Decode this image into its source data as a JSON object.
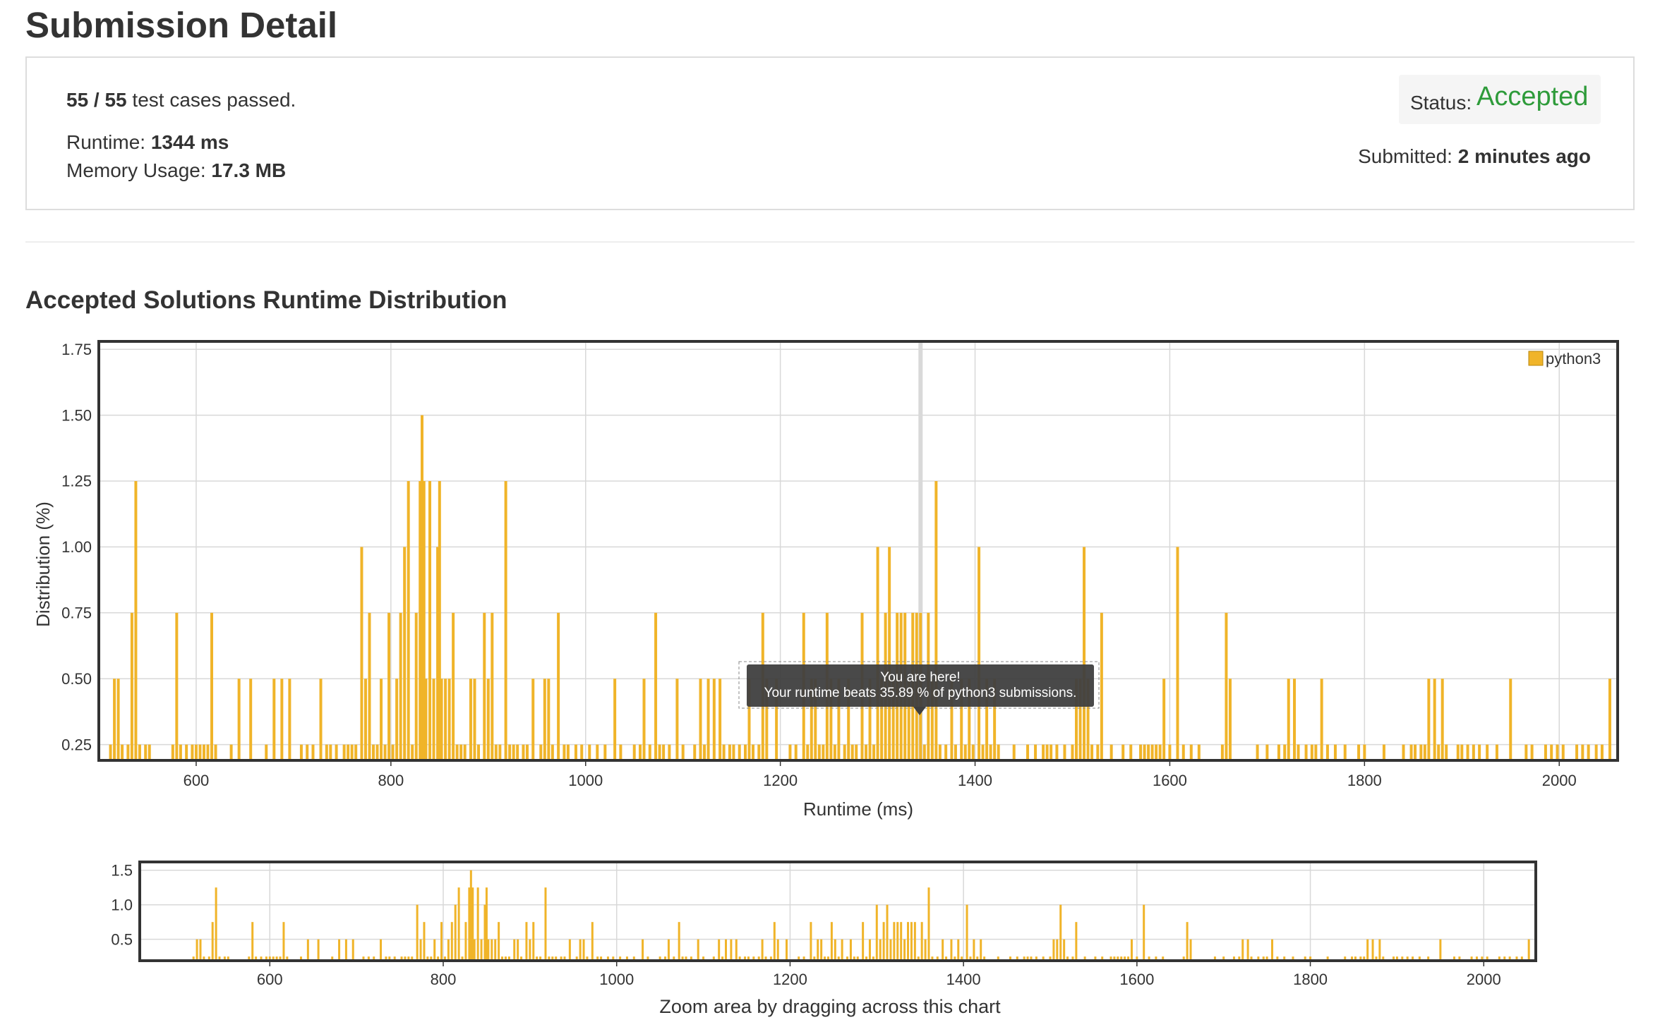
{
  "page": {
    "title": "Submission Detail"
  },
  "summary": {
    "passed": "55 / 55",
    "passed_suffix": " test cases passed.",
    "runtime_label": "Runtime: ",
    "runtime_value": "1344 ms",
    "memory_label": "Memory Usage: ",
    "memory_value": "17.3 MB",
    "status_label": "Status: ",
    "status_value": "Accepted",
    "submitted_label": "Submitted: ",
    "submitted_value": "2 minutes ago"
  },
  "section": {
    "title": "Accepted Solutions Runtime Distribution"
  },
  "tooltip": {
    "line1": "You are here!",
    "line2": "Your runtime beats 35.89 % of python3 submissions."
  },
  "navigator": {
    "caption": "Zoom area by dragging across this chart"
  },
  "colors": {
    "bar": "#f0b429",
    "accepted": "#2e9b3a",
    "grid": "#d8d8d8",
    "tooltip_bg": "#3f3f3f"
  },
  "chart_data": [
    {
      "type": "bar",
      "xlabel": "Runtime (ms)",
      "ylabel": "Distribution (%)",
      "xlim": [
        500,
        2060
      ],
      "ylim": [
        0.19,
        1.78
      ],
      "xticks": [
        600,
        800,
        1000,
        1200,
        1400,
        1600,
        1800,
        2000
      ],
      "yticks": [
        0.25,
        0.5,
        0.75,
        1.0,
        1.25,
        1.5,
        1.75
      ],
      "ytick_labels": [
        "0.25",
        "0.50",
        "0.75",
        "1.00",
        "1.25",
        "1.50",
        "1.75"
      ],
      "grid": true,
      "legend": "top-right",
      "marker_x": 1344,
      "series": [
        {
          "name": "python3",
          "points": [
            [
              512,
              0.25
            ],
            [
              516,
              0.5
            ],
            [
              520,
              0.5
            ],
            [
              524,
              0.25
            ],
            [
              530,
              0.25
            ],
            [
              534,
              0.75
            ],
            [
              538,
              1.25
            ],
            [
              542,
              0.25
            ],
            [
              548,
              0.25
            ],
            [
              552,
              0.25
            ],
            [
              576,
              0.25
            ],
            [
              580,
              0.75
            ],
            [
              584,
              0.25
            ],
            [
              590,
              0.25
            ],
            [
              596,
              0.25
            ],
            [
              600,
              0.25
            ],
            [
              604,
              0.25
            ],
            [
              608,
              0.25
            ],
            [
              612,
              0.25
            ],
            [
              616,
              0.75
            ],
            [
              620,
              0.25
            ],
            [
              636,
              0.25
            ],
            [
              644,
              0.5
            ],
            [
              656,
              0.5
            ],
            [
              672,
              0.25
            ],
            [
              680,
              0.5
            ],
            [
              688,
              0.5
            ],
            [
              696,
              0.5
            ],
            [
              708,
              0.25
            ],
            [
              714,
              0.25
            ],
            [
              720,
              0.25
            ],
            [
              728,
              0.5
            ],
            [
              734,
              0.25
            ],
            [
              738,
              0.25
            ],
            [
              744,
              0.25
            ],
            [
              752,
              0.25
            ],
            [
              756,
              0.25
            ],
            [
              760,
              0.25
            ],
            [
              764,
              0.25
            ],
            [
              770,
              1.0
            ],
            [
              774,
              0.5
            ],
            [
              778,
              0.75
            ],
            [
              782,
              0.25
            ],
            [
              786,
              0.25
            ],
            [
              790,
              0.5
            ],
            [
              794,
              0.25
            ],
            [
              798,
              0.75
            ],
            [
              802,
              0.25
            ],
            [
              806,
              0.5
            ],
            [
              810,
              0.75
            ],
            [
              814,
              1.0
            ],
            [
              818,
              1.25
            ],
            [
              822,
              0.25
            ],
            [
              826,
              0.75
            ],
            [
              830,
              1.25
            ],
            [
              832,
              1.5
            ],
            [
              834,
              1.25
            ],
            [
              836,
              0.5
            ],
            [
              840,
              1.25
            ],
            [
              844,
              0.5
            ],
            [
              848,
              1.0
            ],
            [
              850,
              1.25
            ],
            [
              852,
              0.5
            ],
            [
              856,
              0.5
            ],
            [
              860,
              0.5
            ],
            [
              864,
              0.75
            ],
            [
              868,
              0.25
            ],
            [
              872,
              0.25
            ],
            [
              876,
              0.25
            ],
            [
              882,
              0.5
            ],
            [
              886,
              0.5
            ],
            [
              890,
              0.25
            ],
            [
              896,
              0.75
            ],
            [
              900,
              0.5
            ],
            [
              904,
              0.75
            ],
            [
              908,
              0.25
            ],
            [
              912,
              0.25
            ],
            [
              918,
              1.25
            ],
            [
              922,
              0.25
            ],
            [
              926,
              0.25
            ],
            [
              930,
              0.25
            ],
            [
              936,
              0.25
            ],
            [
              940,
              0.25
            ],
            [
              946,
              0.5
            ],
            [
              954,
              0.25
            ],
            [
              958,
              0.5
            ],
            [
              962,
              0.5
            ],
            [
              966,
              0.25
            ],
            [
              972,
              0.75
            ],
            [
              978,
              0.25
            ],
            [
              982,
              0.25
            ],
            [
              990,
              0.25
            ],
            [
              996,
              0.25
            ],
            [
              1004,
              0.25
            ],
            [
              1012,
              0.25
            ],
            [
              1020,
              0.25
            ],
            [
              1030,
              0.5
            ],
            [
              1036,
              0.25
            ],
            [
              1050,
              0.25
            ],
            [
              1056,
              0.25
            ],
            [
              1060,
              0.5
            ],
            [
              1066,
              0.25
            ],
            [
              1072,
              0.75
            ],
            [
              1076,
              0.25
            ],
            [
              1080,
              0.25
            ],
            [
              1086,
              0.25
            ],
            [
              1094,
              0.5
            ],
            [
              1100,
              0.25
            ],
            [
              1112,
              0.25
            ],
            [
              1118,
              0.5
            ],
            [
              1122,
              0.25
            ],
            [
              1126,
              0.5
            ],
            [
              1132,
              0.5
            ],
            [
              1138,
              0.5
            ],
            [
              1142,
              0.25
            ],
            [
              1148,
              0.25
            ],
            [
              1152,
              0.25
            ],
            [
              1158,
              0.25
            ],
            [
              1164,
              0.25
            ],
            [
              1168,
              0.5
            ],
            [
              1172,
              0.25
            ],
            [
              1178,
              0.25
            ],
            [
              1182,
              0.75
            ],
            [
              1186,
              0.5
            ],
            [
              1196,
              0.5
            ],
            [
              1210,
              0.25
            ],
            [
              1216,
              0.25
            ],
            [
              1224,
              0.75
            ],
            [
              1228,
              0.25
            ],
            [
              1232,
              0.5
            ],
            [
              1236,
              0.5
            ],
            [
              1240,
              0.25
            ],
            [
              1244,
              0.25
            ],
            [
              1248,
              0.75
            ],
            [
              1252,
              0.5
            ],
            [
              1256,
              0.25
            ],
            [
              1260,
              0.5
            ],
            [
              1266,
              0.25
            ],
            [
              1270,
              0.5
            ],
            [
              1274,
              0.25
            ],
            [
              1278,
              0.25
            ],
            [
              1284,
              0.75
            ],
            [
              1288,
              0.25
            ],
            [
              1292,
              0.5
            ],
            [
              1296,
              0.25
            ],
            [
              1300,
              1.0
            ],
            [
              1304,
              0.5
            ],
            [
              1308,
              0.75
            ],
            [
              1312,
              1.0
            ],
            [
              1316,
              0.5
            ],
            [
              1320,
              0.75
            ],
            [
              1324,
              0.75
            ],
            [
              1328,
              0.75
            ],
            [
              1332,
              0.5
            ],
            [
              1336,
              0.75
            ],
            [
              1340,
              0.75
            ],
            [
              1344,
              0.75
            ],
            [
              1348,
              0.25
            ],
            [
              1352,
              0.75
            ],
            [
              1356,
              0.5
            ],
            [
              1360,
              1.25
            ],
            [
              1364,
              0.25
            ],
            [
              1370,
              0.25
            ],
            [
              1376,
              0.5
            ],
            [
              1380,
              0.25
            ],
            [
              1386,
              0.5
            ],
            [
              1390,
              0.25
            ],
            [
              1394,
              0.5
            ],
            [
              1398,
              0.25
            ],
            [
              1404,
              1.0
            ],
            [
              1408,
              0.25
            ],
            [
              1412,
              0.5
            ],
            [
              1416,
              0.25
            ],
            [
              1420,
              0.5
            ],
            [
              1424,
              0.25
            ],
            [
              1440,
              0.25
            ],
            [
              1454,
              0.25
            ],
            [
              1462,
              0.25
            ],
            [
              1470,
              0.25
            ],
            [
              1474,
              0.25
            ],
            [
              1478,
              0.25
            ],
            [
              1484,
              0.25
            ],
            [
              1492,
              0.25
            ],
            [
              1500,
              0.25
            ],
            [
              1504,
              0.5
            ],
            [
              1508,
              0.5
            ],
            [
              1512,
              1.0
            ],
            [
              1516,
              0.5
            ],
            [
              1520,
              0.25
            ],
            [
              1526,
              0.25
            ],
            [
              1530,
              0.75
            ],
            [
              1540,
              0.25
            ],
            [
              1552,
              0.25
            ],
            [
              1560,
              0.25
            ],
            [
              1570,
              0.25
            ],
            [
              1574,
              0.25
            ],
            [
              1578,
              0.25
            ],
            [
              1582,
              0.25
            ],
            [
              1586,
              0.25
            ],
            [
              1590,
              0.25
            ],
            [
              1594,
              0.5
            ],
            [
              1600,
              0.25
            ],
            [
              1608,
              1.0
            ],
            [
              1614,
              0.25
            ],
            [
              1622,
              0.25
            ],
            [
              1630,
              0.25
            ],
            [
              1654,
              0.25
            ],
            [
              1658,
              0.75
            ],
            [
              1662,
              0.5
            ],
            [
              1690,
              0.25
            ],
            [
              1700,
              0.25
            ],
            [
              1712,
              0.25
            ],
            [
              1718,
              0.25
            ],
            [
              1722,
              0.5
            ],
            [
              1728,
              0.5
            ],
            [
              1732,
              0.25
            ],
            [
              1740,
              0.25
            ],
            [
              1746,
              0.25
            ],
            [
              1750,
              0.25
            ],
            [
              1756,
              0.5
            ],
            [
              1762,
              0.25
            ],
            [
              1770,
              0.25
            ],
            [
              1780,
              0.25
            ],
            [
              1794,
              0.25
            ],
            [
              1800,
              0.25
            ],
            [
              1820,
              0.25
            ],
            [
              1840,
              0.25
            ],
            [
              1848,
              0.25
            ],
            [
              1852,
              0.25
            ],
            [
              1858,
              0.25
            ],
            [
              1862,
              0.25
            ],
            [
              1866,
              0.5
            ],
            [
              1872,
              0.5
            ],
            [
              1876,
              0.25
            ],
            [
              1880,
              0.5
            ],
            [
              1884,
              0.25
            ],
            [
              1896,
              0.25
            ],
            [
              1900,
              0.25
            ],
            [
              1906,
              0.25
            ],
            [
              1912,
              0.25
            ],
            [
              1918,
              0.25
            ],
            [
              1926,
              0.25
            ],
            [
              1936,
              0.25
            ],
            [
              1950,
              0.5
            ],
            [
              1966,
              0.25
            ],
            [
              1972,
              0.25
            ],
            [
              1986,
              0.25
            ],
            [
              1992,
              0.25
            ],
            [
              1998,
              0.25
            ],
            [
              2004,
              0.25
            ],
            [
              2018,
              0.25
            ],
            [
              2024,
              0.25
            ],
            [
              2030,
              0.25
            ],
            [
              2038,
              0.25
            ],
            [
              2044,
              0.25
            ],
            [
              2052,
              0.5
            ]
          ]
        }
      ]
    },
    {
      "type": "bar",
      "xlabel": "Zoom area by dragging across this chart",
      "ylabel": "",
      "xlim": [
        450,
        2060
      ],
      "ylim": [
        0.19,
        1.62
      ],
      "xticks": [
        600,
        800,
        1000,
        1200,
        1400,
        1600,
        1800,
        2000
      ],
      "yticks": [
        0.5,
        1.0,
        1.5
      ],
      "ytick_labels": [
        "0.5",
        "1.0",
        "1.5"
      ],
      "grid": true,
      "series_ref": "python3"
    }
  ]
}
